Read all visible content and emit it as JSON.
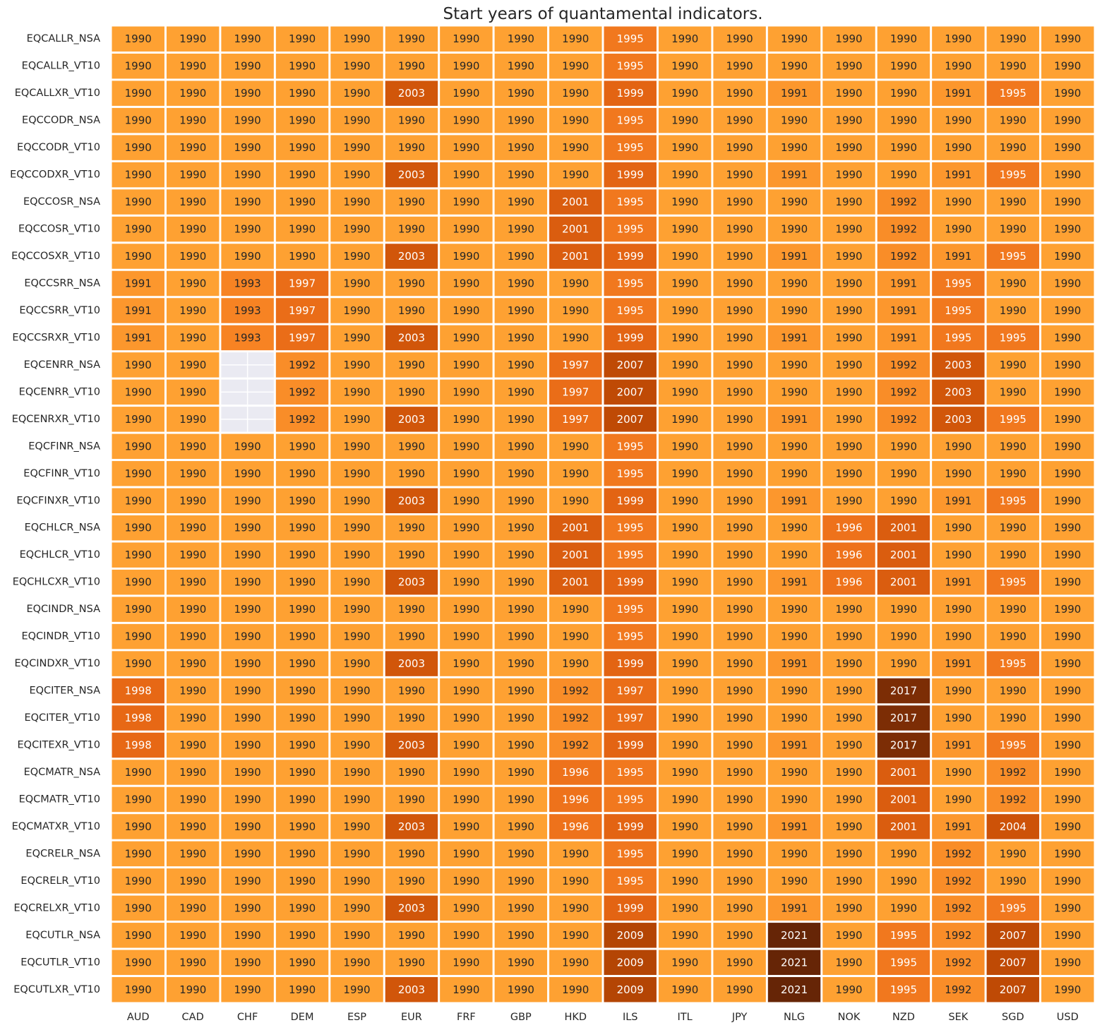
{
  "chart_data": {
    "type": "heatmap",
    "title": "Start years of quantamental indicators.",
    "xlabel": "",
    "ylabel": "",
    "x_categories": [
      "AUD",
      "CAD",
      "CHF",
      "DEM",
      "ESP",
      "EUR",
      "FRF",
      "GBP",
      "HKD",
      "ILS",
      "ITL",
      "JPY",
      "NLG",
      "NOK",
      "NZD",
      "SEK",
      "SGD",
      "USD"
    ],
    "y_categories": [
      "EQCALLR_NSA",
      "EQCALLR_VT10",
      "EQCALLXR_VT10",
      "EQCCODR_NSA",
      "EQCCODR_VT10",
      "EQCCODXR_VT10",
      "EQCCOSR_NSA",
      "EQCCOSR_VT10",
      "EQCCOSXR_VT10",
      "EQCCSRR_NSA",
      "EQCCSRR_VT10",
      "EQCCSRXR_VT10",
      "EQCENRR_NSA",
      "EQCENRR_VT10",
      "EQCENRXR_VT10",
      "EQCFINR_NSA",
      "EQCFINR_VT10",
      "EQCFINXR_VT10",
      "EQCHLCR_NSA",
      "EQCHLCR_VT10",
      "EQCHLCXR_VT10",
      "EQCINDR_NSA",
      "EQCINDR_VT10",
      "EQCINDXR_VT10",
      "EQCITER_NSA",
      "EQCITER_VT10",
      "EQCITEXR_VT10",
      "EQCMATR_NSA",
      "EQCMATR_VT10",
      "EQCMATXR_VT10",
      "EQCRELR_NSA",
      "EQCRELR_VT10",
      "EQCRELXR_VT10",
      "EQCUTLR_NSA",
      "EQCUTLR_VT10",
      "EQCUTLXR_VT10"
    ],
    "values": [
      [
        1990,
        1990,
        1990,
        1990,
        1990,
        1990,
        1990,
        1990,
        1990,
        1995,
        1990,
        1990,
        1990,
        1990,
        1990,
        1990,
        1990,
        1990
      ],
      [
        1990,
        1990,
        1990,
        1990,
        1990,
        1990,
        1990,
        1990,
        1990,
        1995,
        1990,
        1990,
        1990,
        1990,
        1990,
        1990,
        1990,
        1990
      ],
      [
        1990,
        1990,
        1990,
        1990,
        1990,
        2003,
        1990,
        1990,
        1990,
        1999,
        1990,
        1990,
        1991,
        1990,
        1990,
        1991,
        1995,
        1990
      ],
      [
        1990,
        1990,
        1990,
        1990,
        1990,
        1990,
        1990,
        1990,
        1990,
        1995,
        1990,
        1990,
        1990,
        1990,
        1990,
        1990,
        1990,
        1990
      ],
      [
        1990,
        1990,
        1990,
        1990,
        1990,
        1990,
        1990,
        1990,
        1990,
        1995,
        1990,
        1990,
        1990,
        1990,
        1990,
        1990,
        1990,
        1990
      ],
      [
        1990,
        1990,
        1990,
        1990,
        1990,
        2003,
        1990,
        1990,
        1990,
        1999,
        1990,
        1990,
        1991,
        1990,
        1990,
        1991,
        1995,
        1990
      ],
      [
        1990,
        1990,
        1990,
        1990,
        1990,
        1990,
        1990,
        1990,
        2001,
        1995,
        1990,
        1990,
        1990,
        1990,
        1992,
        1990,
        1990,
        1990
      ],
      [
        1990,
        1990,
        1990,
        1990,
        1990,
        1990,
        1990,
        1990,
        2001,
        1995,
        1990,
        1990,
        1990,
        1990,
        1992,
        1990,
        1990,
        1990
      ],
      [
        1990,
        1990,
        1990,
        1990,
        1990,
        2003,
        1990,
        1990,
        2001,
        1999,
        1990,
        1990,
        1991,
        1990,
        1992,
        1991,
        1995,
        1990
      ],
      [
        1991,
        1990,
        1993,
        1997,
        1990,
        1990,
        1990,
        1990,
        1990,
        1995,
        1990,
        1990,
        1990,
        1990,
        1991,
        1995,
        1990,
        1990
      ],
      [
        1991,
        1990,
        1993,
        1997,
        1990,
        1990,
        1990,
        1990,
        1990,
        1995,
        1990,
        1990,
        1990,
        1990,
        1991,
        1995,
        1990,
        1990
      ],
      [
        1991,
        1990,
        1993,
        1997,
        1990,
        2003,
        1990,
        1990,
        1990,
        1999,
        1990,
        1990,
        1991,
        1990,
        1991,
        1995,
        1995,
        1990
      ],
      [
        1990,
        1990,
        null,
        1992,
        1990,
        1990,
        1990,
        1990,
        1997,
        2007,
        1990,
        1990,
        1990,
        1990,
        1992,
        2003,
        1990,
        1990
      ],
      [
        1990,
        1990,
        null,
        1992,
        1990,
        1990,
        1990,
        1990,
        1997,
        2007,
        1990,
        1990,
        1990,
        1990,
        1992,
        2003,
        1990,
        1990
      ],
      [
        1990,
        1990,
        null,
        1992,
        1990,
        2003,
        1990,
        1990,
        1997,
        2007,
        1990,
        1990,
        1991,
        1990,
        1992,
        2003,
        1995,
        1990
      ],
      [
        1990,
        1990,
        1990,
        1990,
        1990,
        1990,
        1990,
        1990,
        1990,
        1995,
        1990,
        1990,
        1990,
        1990,
        1990,
        1990,
        1990,
        1990
      ],
      [
        1990,
        1990,
        1990,
        1990,
        1990,
        1990,
        1990,
        1990,
        1990,
        1995,
        1990,
        1990,
        1990,
        1990,
        1990,
        1990,
        1990,
        1990
      ],
      [
        1990,
        1990,
        1990,
        1990,
        1990,
        2003,
        1990,
        1990,
        1990,
        1999,
        1990,
        1990,
        1991,
        1990,
        1990,
        1991,
        1995,
        1990
      ],
      [
        1990,
        1990,
        1990,
        1990,
        1990,
        1990,
        1990,
        1990,
        2001,
        1995,
        1990,
        1990,
        1990,
        1996,
        2001,
        1990,
        1990,
        1990
      ],
      [
        1990,
        1990,
        1990,
        1990,
        1990,
        1990,
        1990,
        1990,
        2001,
        1995,
        1990,
        1990,
        1990,
        1996,
        2001,
        1990,
        1990,
        1990
      ],
      [
        1990,
        1990,
        1990,
        1990,
        1990,
        2003,
        1990,
        1990,
        2001,
        1999,
        1990,
        1990,
        1991,
        1996,
        2001,
        1991,
        1995,
        1990
      ],
      [
        1990,
        1990,
        1990,
        1990,
        1990,
        1990,
        1990,
        1990,
        1990,
        1995,
        1990,
        1990,
        1990,
        1990,
        1990,
        1990,
        1990,
        1990
      ],
      [
        1990,
        1990,
        1990,
        1990,
        1990,
        1990,
        1990,
        1990,
        1990,
        1995,
        1990,
        1990,
        1990,
        1990,
        1990,
        1990,
        1990,
        1990
      ],
      [
        1990,
        1990,
        1990,
        1990,
        1990,
        2003,
        1990,
        1990,
        1990,
        1999,
        1990,
        1990,
        1991,
        1990,
        1990,
        1991,
        1995,
        1990
      ],
      [
        1998,
        1990,
        1990,
        1990,
        1990,
        1990,
        1990,
        1990,
        1992,
        1997,
        1990,
        1990,
        1990,
        1990,
        2017,
        1990,
        1990,
        1990
      ],
      [
        1998,
        1990,
        1990,
        1990,
        1990,
        1990,
        1990,
        1990,
        1992,
        1997,
        1990,
        1990,
        1990,
        1990,
        2017,
        1990,
        1990,
        1990
      ],
      [
        1998,
        1990,
        1990,
        1990,
        1990,
        2003,
        1990,
        1990,
        1992,
        1999,
        1990,
        1990,
        1991,
        1990,
        2017,
        1991,
        1995,
        1990
      ],
      [
        1990,
        1990,
        1990,
        1990,
        1990,
        1990,
        1990,
        1990,
        1996,
        1995,
        1990,
        1990,
        1990,
        1990,
        2001,
        1990,
        1992,
        1990
      ],
      [
        1990,
        1990,
        1990,
        1990,
        1990,
        1990,
        1990,
        1990,
        1996,
        1995,
        1990,
        1990,
        1990,
        1990,
        2001,
        1990,
        1992,
        1990
      ],
      [
        1990,
        1990,
        1990,
        1990,
        1990,
        2003,
        1990,
        1990,
        1996,
        1999,
        1990,
        1990,
        1991,
        1990,
        2001,
        1991,
        2004,
        1990
      ],
      [
        1990,
        1990,
        1990,
        1990,
        1990,
        1990,
        1990,
        1990,
        1990,
        1995,
        1990,
        1990,
        1990,
        1990,
        1990,
        1992,
        1990,
        1990
      ],
      [
        1990,
        1990,
        1990,
        1990,
        1990,
        1990,
        1990,
        1990,
        1990,
        1995,
        1990,
        1990,
        1990,
        1990,
        1990,
        1992,
        1990,
        1990
      ],
      [
        1990,
        1990,
        1990,
        1990,
        1990,
        2003,
        1990,
        1990,
        1990,
        1999,
        1990,
        1990,
        1991,
        1990,
        1990,
        1992,
        1995,
        1990
      ],
      [
        1990,
        1990,
        1990,
        1990,
        1990,
        1990,
        1990,
        1990,
        1990,
        2009,
        1990,
        1990,
        2021,
        1990,
        1995,
        1992,
        2007,
        1990
      ],
      [
        1990,
        1990,
        1990,
        1990,
        1990,
        1990,
        1990,
        1990,
        1990,
        2009,
        1990,
        1990,
        2021,
        1990,
        1995,
        1992,
        2007,
        1990
      ],
      [
        1990,
        1990,
        1990,
        1990,
        1990,
        2003,
        1990,
        1990,
        1990,
        2009,
        1990,
        1990,
        2021,
        1990,
        1995,
        1992,
        2007,
        1990
      ]
    ],
    "colormap": "YlOrBr",
    "vmin": 1990,
    "vmax": 2021,
    "missing_color": "#eaeaf2",
    "grid_color": "#ffffff",
    "legend": "none"
  }
}
